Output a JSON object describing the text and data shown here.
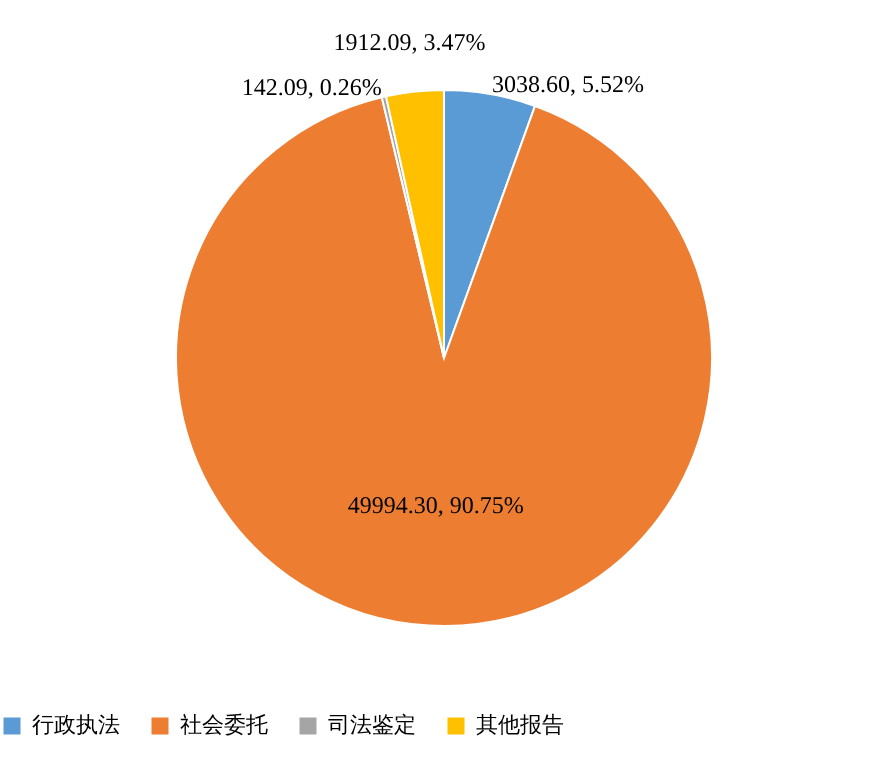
{
  "chart_data": {
    "type": "pie",
    "categories": [
      "行政执法",
      "社会委托",
      "司法鉴定",
      "其他报告"
    ],
    "values": [
      3038.6,
      49994.3,
      142.09,
      1912.09
    ],
    "colors": [
      "#5b9bd5",
      "#ed7d31",
      "#a5a5a5",
      "#ffc000"
    ],
    "value_labels": [
      "3038.60, 5.52%",
      "49994.30, 90.75%",
      "142.09, 0.26%",
      "1912.09, 3.47%"
    ],
    "legend": "bottom"
  }
}
